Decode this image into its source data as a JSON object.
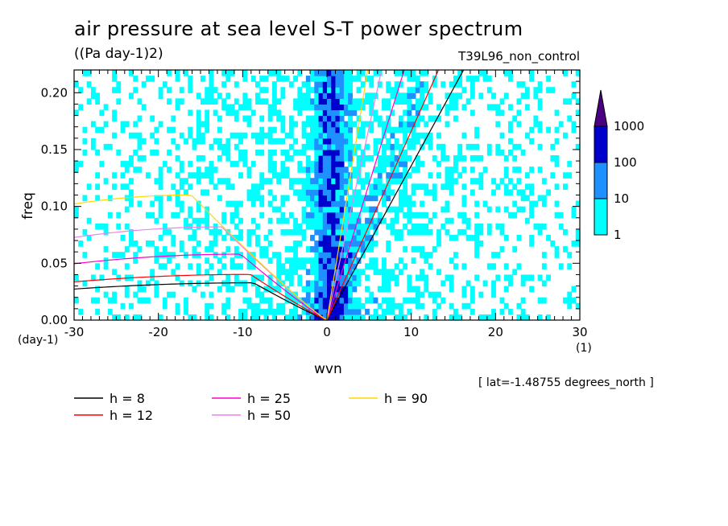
{
  "chart_data": {
    "type": "heatmap",
    "title": "air pressure at sea level S-T power spectrum",
    "units": "((Pa day-1)2)",
    "run_name": "T39L96_non_control",
    "latitude_note": "[ lat=-1.48755 degrees_north ]",
    "xlabel": "wvn",
    "ylabel": "freq",
    "x_unit": "(1)",
    "y_unit": "(day-1)",
    "xlim": [
      -30,
      30
    ],
    "ylim": [
      0,
      0.22
    ],
    "x_ticks": [
      -30,
      -20,
      -10,
      0,
      10,
      20,
      30
    ],
    "y_ticks": [
      0.0,
      0.05,
      0.1,
      0.15,
      0.2
    ],
    "x_tick_labels": [
      "-30",
      "-20",
      "-10",
      "0",
      "10",
      "20",
      "30"
    ],
    "y_tick_labels": [
      "0.00",
      "0.05",
      "0.10",
      "0.15",
      "0.20"
    ],
    "colorbar": {
      "levels": [
        1,
        10,
        100,
        1000
      ],
      "labels": [
        "1",
        "10",
        "100",
        "1000"
      ],
      "colors": [
        "#00ffff",
        "#1e90ff",
        "#0000cd",
        "#4b0082"
      ]
    },
    "dispersion_curves": [
      {
        "name": "h =  8",
        "h": 8,
        "color": "#000000"
      },
      {
        "name": "h = 12",
        "h": 12,
        "color": "#ff0000"
      },
      {
        "name": "h = 25",
        "h": 25,
        "color": "#ff00cc"
      },
      {
        "name": "h = 50",
        "h": 50,
        "color": "#ee82ee"
      },
      {
        "name": "h = 90",
        "h": 90,
        "color": "#ffd700"
      }
    ]
  },
  "labels": {
    "title": "air pressure at sea level S-T power spectrum",
    "units": "((Pa day-1)2)",
    "run": "T39L96_non_control",
    "lat": "[ lat=-1.48755 degrees_north ]",
    "xlabel": "wvn",
    "ylabel": "freq",
    "xunit": "(1)",
    "yunit": "(day-1)"
  }
}
